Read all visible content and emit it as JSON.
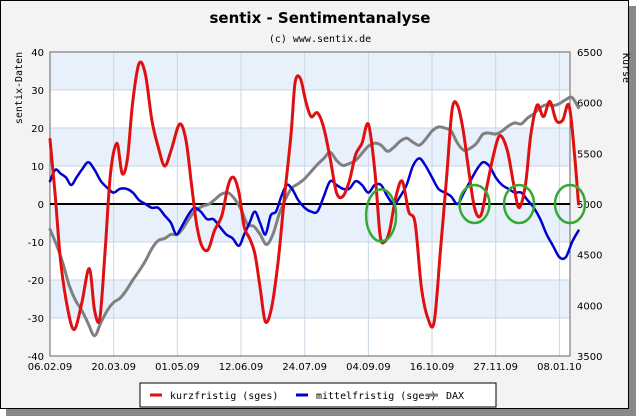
{
  "chart_data": {
    "type": "line",
    "title": "sentix - Sentimentanalyse",
    "subtitle": "(c) www.sentix.de",
    "ylabel_left": "sentix-Daten",
    "ylabel_right": "Kurse",
    "ylim_left": [
      -40,
      40
    ],
    "ylim_right": [
      3500,
      6500
    ],
    "yticks_left": [
      40,
      30,
      20,
      10,
      0,
      -10,
      -20,
      -30,
      -40
    ],
    "yticks_right": [
      6500,
      6000,
      5500,
      5000,
      4500,
      4000,
      3500
    ],
    "xlim_week": [
      0,
      49
    ],
    "xticks": [
      {
        "week": 0,
        "label": "06.02.09"
      },
      {
        "week": 6,
        "label": "20.03.09"
      },
      {
        "week": 12,
        "label": "01.05.09"
      },
      {
        "week": 18,
        "label": "12.06.09"
      },
      {
        "week": 24,
        "label": "24.07.09"
      },
      {
        "week": 30,
        "label": "04.09.09"
      },
      {
        "week": 36,
        "label": "16.10.09"
      },
      {
        "week": 42,
        "label": "27.11.09"
      },
      {
        "week": 48,
        "label": "08.01.10"
      }
    ],
    "series": [
      {
        "name": "kurzfristig (sges)",
        "color": "#e01010",
        "axis": "left",
        "points": [
          [
            0,
            17
          ],
          [
            0.5,
            2
          ],
          [
            1,
            -15
          ],
          [
            1.7,
            -28
          ],
          [
            2.3,
            -33
          ],
          [
            3,
            -26
          ],
          [
            3.7,
            -17
          ],
          [
            4.2,
            -28
          ],
          [
            4.7,
            -30
          ],
          [
            5.2,
            -12
          ],
          [
            5.7,
            8
          ],
          [
            6.3,
            16
          ],
          [
            6.8,
            8
          ],
          [
            7.3,
            12
          ],
          [
            7.8,
            27
          ],
          [
            8.4,
            37
          ],
          [
            9,
            34
          ],
          [
            9.6,
            22
          ],
          [
            10.2,
            15
          ],
          [
            10.8,
            10
          ],
          [
            11.4,
            14
          ],
          [
            12.2,
            21
          ],
          [
            12.8,
            17
          ],
          [
            13.3,
            6
          ],
          [
            13.8,
            -5
          ],
          [
            14.3,
            -11
          ],
          [
            14.9,
            -12
          ],
          [
            15.5,
            -7
          ],
          [
            16.2,
            -3
          ],
          [
            16.8,
            5
          ],
          [
            17.3,
            7
          ],
          [
            17.8,
            3
          ],
          [
            18.3,
            -6
          ],
          [
            18.8,
            -9
          ],
          [
            19.3,
            -13
          ],
          [
            19.8,
            -22
          ],
          [
            20.3,
            -31
          ],
          [
            20.9,
            -27
          ],
          [
            21.5,
            -15
          ],
          [
            22.1,
            2
          ],
          [
            22.7,
            18
          ],
          [
            23.1,
            32
          ],
          [
            23.6,
            33
          ],
          [
            24.1,
            27
          ],
          [
            24.6,
            23
          ],
          [
            25.2,
            24
          ],
          [
            25.8,
            20
          ],
          [
            26.4,
            12
          ],
          [
            27,
            3
          ],
          [
            27.6,
            2
          ],
          [
            28.2,
            6
          ],
          [
            28.8,
            13
          ],
          [
            29.4,
            16
          ],
          [
            30,
            21
          ],
          [
            30.6,
            9
          ],
          [
            31.1,
            -8
          ],
          [
            31.5,
            -10
          ],
          [
            32,
            -7
          ],
          [
            32.6,
            2
          ],
          [
            33.2,
            6
          ],
          [
            33.8,
            -2
          ],
          [
            34.4,
            -5
          ],
          [
            35,
            -22
          ],
          [
            35.6,
            -30
          ],
          [
            36.2,
            -31
          ],
          [
            36.8,
            -12
          ],
          [
            37.4,
            8
          ],
          [
            37.9,
            25
          ],
          [
            38.4,
            26
          ],
          [
            38.9,
            20
          ],
          [
            39.4,
            10
          ],
          [
            40,
            -1
          ],
          [
            40.6,
            -3
          ],
          [
            41.2,
            5
          ],
          [
            41.8,
            13
          ],
          [
            42.4,
            18
          ],
          [
            43.1,
            14
          ],
          [
            43.7,
            5
          ],
          [
            44.2,
            -1
          ],
          [
            44.8,
            5
          ],
          [
            45.3,
            18
          ],
          [
            45.9,
            26
          ],
          [
            46.5,
            23
          ],
          [
            47.1,
            27
          ],
          [
            47.7,
            22
          ],
          [
            48.3,
            22
          ],
          [
            48.9,
            26
          ],
          [
            49.4,
            14
          ],
          [
            49.8,
            0
          ]
        ]
      },
      {
        "name": "mittelfristig (sges)",
        "color": "#0000cc",
        "axis": "left",
        "points": [
          [
            0,
            6
          ],
          [
            0.5,
            9
          ],
          [
            1,
            8
          ],
          [
            1.5,
            7
          ],
          [
            2,
            5
          ],
          [
            2.5,
            7
          ],
          [
            3,
            9
          ],
          [
            3.6,
            11
          ],
          [
            4.2,
            9
          ],
          [
            4.8,
            6
          ],
          [
            5.5,
            4
          ],
          [
            6,
            3
          ],
          [
            6.6,
            4
          ],
          [
            7.2,
            4
          ],
          [
            7.8,
            3
          ],
          [
            8.4,
            1
          ],
          [
            9,
            0
          ],
          [
            9.6,
            -1
          ],
          [
            10.2,
            -1
          ],
          [
            10.8,
            -3
          ],
          [
            11.4,
            -5
          ],
          [
            11.9,
            -8
          ],
          [
            12.4,
            -6
          ],
          [
            13,
            -3
          ],
          [
            13.6,
            -1
          ],
          [
            14.2,
            -2
          ],
          [
            14.8,
            -4
          ],
          [
            15.4,
            -4
          ],
          [
            16,
            -6
          ],
          [
            16.6,
            -8
          ],
          [
            17.2,
            -9
          ],
          [
            17.8,
            -11
          ],
          [
            18.3,
            -8
          ],
          [
            18.8,
            -5
          ],
          [
            19.3,
            -2
          ],
          [
            19.8,
            -5
          ],
          [
            20.3,
            -8
          ],
          [
            20.8,
            -3
          ],
          [
            21.3,
            -2
          ],
          [
            21.8,
            2
          ],
          [
            22.3,
            5
          ],
          [
            22.8,
            4
          ],
          [
            23.4,
            1
          ],
          [
            24,
            -1
          ],
          [
            24.6,
            -2
          ],
          [
            25.2,
            -2
          ],
          [
            25.8,
            2
          ],
          [
            26.4,
            6
          ],
          [
            27,
            5
          ],
          [
            27.6,
            4
          ],
          [
            28.2,
            4
          ],
          [
            28.8,
            6
          ],
          [
            29.4,
            5
          ],
          [
            30,
            3
          ],
          [
            30.6,
            5
          ],
          [
            31.2,
            5
          ],
          [
            31.8,
            2
          ],
          [
            32.4,
            0
          ],
          [
            33,
            2
          ],
          [
            33.6,
            5
          ],
          [
            34.2,
            10
          ],
          [
            34.8,
            12
          ],
          [
            35.4,
            10
          ],
          [
            36,
            7
          ],
          [
            36.6,
            4
          ],
          [
            37.2,
            3
          ],
          [
            37.8,
            2
          ],
          [
            38.4,
            0
          ],
          [
            39,
            3
          ],
          [
            39.6,
            6
          ],
          [
            40.2,
            9
          ],
          [
            40.8,
            11
          ],
          [
            41.4,
            10
          ],
          [
            42,
            7
          ],
          [
            42.6,
            5
          ],
          [
            43.2,
            4
          ],
          [
            43.8,
            3
          ],
          [
            44.4,
            3
          ],
          [
            45,
            1
          ],
          [
            45.6,
            -1
          ],
          [
            46.2,
            -4
          ],
          [
            46.8,
            -8
          ],
          [
            47.4,
            -11
          ],
          [
            48,
            -14
          ],
          [
            48.6,
            -14
          ],
          [
            49.2,
            -10
          ],
          [
            49.8,
            -7
          ]
        ]
      },
      {
        "name": "DAX",
        "color": "#808080",
        "axis": "right",
        "points": [
          [
            0,
            4750
          ],
          [
            0.6,
            4600
          ],
          [
            1.2,
            4420
          ],
          [
            1.8,
            4200
          ],
          [
            2.4,
            4050
          ],
          [
            3,
            3950
          ],
          [
            3.6,
            3820
          ],
          [
            4.2,
            3700
          ],
          [
            4.8,
            3830
          ],
          [
            5.4,
            3950
          ],
          [
            6,
            4030
          ],
          [
            6.6,
            4070
          ],
          [
            7.2,
            4150
          ],
          [
            7.8,
            4250
          ],
          [
            8.4,
            4340
          ],
          [
            9,
            4440
          ],
          [
            9.6,
            4560
          ],
          [
            10.2,
            4640
          ],
          [
            10.8,
            4660
          ],
          [
            11.4,
            4700
          ],
          [
            12,
            4700
          ],
          [
            12.6,
            4770
          ],
          [
            13.2,
            4870
          ],
          [
            13.8,
            4940
          ],
          [
            14.4,
            4980
          ],
          [
            15,
            5000
          ],
          [
            15.6,
            5050
          ],
          [
            16.2,
            5100
          ],
          [
            16.8,
            5110
          ],
          [
            17.4,
            5050
          ],
          [
            18,
            4950
          ],
          [
            18.6,
            4800
          ],
          [
            19.2,
            4780
          ],
          [
            19.8,
            4700
          ],
          [
            20.4,
            4600
          ],
          [
            21,
            4700
          ],
          [
            21.6,
            4900
          ],
          [
            22.2,
            5050
          ],
          [
            22.8,
            5160
          ],
          [
            23.4,
            5200
          ],
          [
            24,
            5250
          ],
          [
            24.6,
            5320
          ],
          [
            25.2,
            5390
          ],
          [
            25.8,
            5450
          ],
          [
            26.4,
            5510
          ],
          [
            27,
            5430
          ],
          [
            27.6,
            5380
          ],
          [
            28.2,
            5400
          ],
          [
            28.8,
            5430
          ],
          [
            29.4,
            5500
          ],
          [
            30,
            5570
          ],
          [
            30.6,
            5600
          ],
          [
            31.2,
            5580
          ],
          [
            31.8,
            5520
          ],
          [
            32.4,
            5560
          ],
          [
            33,
            5620
          ],
          [
            33.6,
            5650
          ],
          [
            34.2,
            5610
          ],
          [
            34.8,
            5580
          ],
          [
            35.4,
            5640
          ],
          [
            36,
            5720
          ],
          [
            36.6,
            5760
          ],
          [
            37.2,
            5750
          ],
          [
            37.8,
            5720
          ],
          [
            38.4,
            5600
          ],
          [
            39,
            5530
          ],
          [
            39.6,
            5550
          ],
          [
            40.2,
            5600
          ],
          [
            40.8,
            5690
          ],
          [
            41.4,
            5700
          ],
          [
            42,
            5690
          ],
          [
            42.6,
            5720
          ],
          [
            43.2,
            5770
          ],
          [
            43.8,
            5800
          ],
          [
            44.4,
            5790
          ],
          [
            45,
            5850
          ],
          [
            45.6,
            5890
          ],
          [
            46.2,
            5950
          ],
          [
            46.8,
            5980
          ],
          [
            47.4,
            5970
          ],
          [
            48,
            5990
          ],
          [
            48.6,
            6030
          ],
          [
            49.2,
            6050
          ],
          [
            49.8,
            5950
          ]
        ]
      }
    ],
    "annotations": [
      {
        "type": "circle",
        "week": 31.2,
        "value": -3,
        "color": "#33aa33"
      },
      {
        "type": "circle",
        "week": 40,
        "value": 0,
        "color": "#33aa33"
      },
      {
        "type": "circle",
        "week": 44.2,
        "value": 0,
        "color": "#33aa33"
      },
      {
        "type": "circle",
        "week": 49,
        "value": 0,
        "color": "#33aa33"
      }
    ]
  }
}
